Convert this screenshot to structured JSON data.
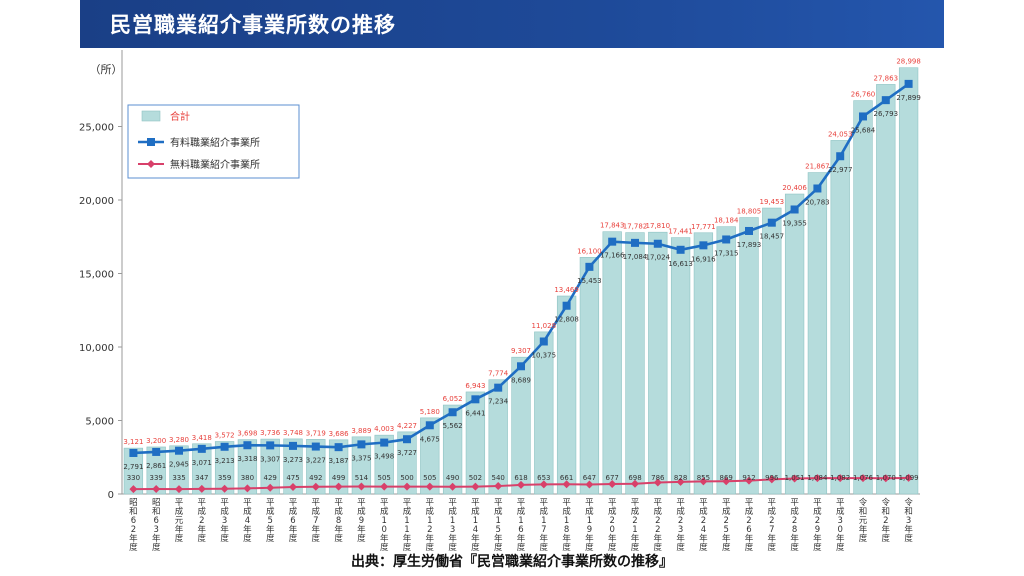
{
  "header": {
    "title": "民営職業紹介事業所数の推移"
  },
  "source": "出典：厚生労働省『民営職業紹介事業所数の推移』",
  "chart_data": {
    "type": "bar",
    "unit_label": "（所）",
    "ylim": [
      0,
      30000
    ],
    "yticks": [
      "0",
      "5,000",
      "10,000",
      "15,000",
      "20,000",
      "25,000"
    ],
    "categories": [
      "昭和62年度",
      "昭和63年度",
      "平成元年度",
      "平成2年度",
      "平成3年度",
      "平成4年度",
      "平成5年度",
      "平成6年度",
      "平成7年度",
      "平成8年度",
      "平成9年度",
      "平成10年度",
      "平成11年度",
      "平成12年度",
      "平成13年度",
      "平成14年度",
      "平成15年度",
      "平成16年度",
      "平成17年度",
      "平成18年度",
      "平成19年度",
      "平成20年度",
      "平成21年度",
      "平成22年度",
      "平成23年度",
      "平成24年度",
      "平成25年度",
      "平成26年度",
      "平成27年度",
      "平成28年度",
      "平成29年度",
      "平成30年度",
      "令和元年度",
      "令和2年度",
      "令和3年度"
    ],
    "series": [
      {
        "name": "合計",
        "type": "bar",
        "color": "#b5dcdc",
        "values": [
          3121,
          3200,
          3280,
          3418,
          3572,
          3698,
          3736,
          3748,
          3719,
          3686,
          3889,
          4003,
          4227,
          5180,
          6052,
          6943,
          7774,
          9307,
          11028,
          13469,
          16100,
          17843,
          17782,
          17810,
          17441,
          17771,
          18184,
          18805,
          19453,
          20406,
          21867,
          24053,
          26760,
          27863,
          28998
        ],
        "labels": [
          "3,121",
          "3,200",
          "3,280",
          "3,418",
          "3,572",
          "3,698",
          "3,736",
          "3,748",
          "3,719",
          "3,686",
          "3,889",
          "4,003",
          "4,227",
          "5,180",
          "6,052",
          "6,943",
          "7,774",
          "9,307",
          "11,028",
          "13,469",
          "16,100",
          "17,843",
          "17,782",
          "17,810",
          "17,441",
          "17,771",
          "18,184",
          "18,805",
          "19,453",
          "20,406",
          "21,867",
          "24,053",
          "26,760",
          "27,863",
          "28,998"
        ]
      },
      {
        "name": "有料職業紹介事業所",
        "type": "line",
        "color": "#1f6ec3",
        "values": [
          2791,
          2861,
          2945,
          3071,
          3213,
          3318,
          3307,
          3273,
          3227,
          3187,
          3375,
          3498,
          3727,
          4675,
          5562,
          6441,
          7234,
          8689,
          10375,
          12808,
          15453,
          17166,
          17084,
          17024,
          16613,
          16916,
          17315,
          17893,
          18457,
          19355,
          20783,
          22977,
          25684,
          26793,
          27899
        ],
        "labels": [
          "2,791",
          "2,861",
          "2,945",
          "3,071",
          "3,213",
          "3,318",
          "3,307",
          "3,273",
          "3,227",
          "3,187",
          "3,375",
          "3,498",
          "3,727",
          "4,675",
          "5,562",
          "6,441",
          "7,234",
          "8,689",
          "10,375",
          "12,808",
          "15,453",
          "17,166",
          "17,084",
          "17,024",
          "16,613",
          "16,916",
          "17,315",
          "17,893",
          "18,457",
          "19,355",
          "20,783",
          "22,977",
          "25,684",
          "26,793",
          "27,899"
        ]
      },
      {
        "name": "無料職業紹介事業所",
        "type": "line",
        "color": "#d8406a",
        "values": [
          330,
          339,
          335,
          347,
          359,
          380,
          429,
          475,
          492,
          499,
          514,
          505,
          500,
          505,
          490,
          502,
          540,
          618,
          653,
          661,
          647,
          677,
          698,
          786,
          828,
          855,
          869,
          912,
          996,
          1051,
          1084,
          1082,
          1076,
          1070,
          1099
        ],
        "labels": [
          "330",
          "339",
          "335",
          "347",
          "359",
          "380",
          "429",
          "475",
          "492",
          "499",
          "514",
          "505",
          "500",
          "505",
          "490",
          "502",
          "540",
          "618",
          "653",
          "661",
          "647",
          "677",
          "698",
          "786",
          "828",
          "855",
          "869",
          "912",
          "996",
          "1,051",
          "1,084",
          "1,082",
          "1,076",
          "1,070",
          "1,099"
        ]
      }
    ],
    "legend_position": "top-left"
  }
}
